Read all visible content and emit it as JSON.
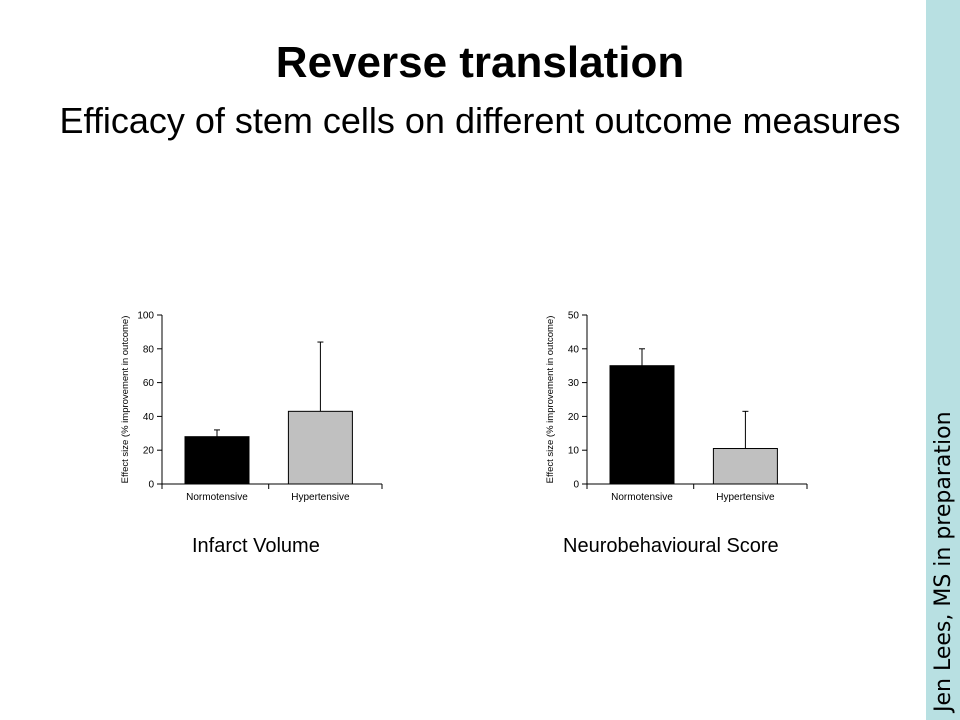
{
  "slide": {
    "title": "Reverse translation",
    "subtitle": "Efficacy of stem cells on different outcome measures",
    "credit": "Jen Lees, MS in preparation"
  },
  "colors": {
    "sidebar": "#b8e0e2",
    "bar_normotensive": "#000000",
    "bar_hypertensive": "#c0c0c0"
  },
  "chart_data": [
    {
      "type": "bar",
      "caption": "Infarct Volume",
      "ylabel": "Effect size (% improvement in outcome)",
      "xlabel": "",
      "categories": [
        "Normotensive",
        "Hypertensive"
      ],
      "values": [
        28,
        43
      ],
      "error_upper": [
        32,
        84
      ],
      "ylim": [
        0,
        100
      ],
      "yticks": [
        0,
        20,
        40,
        60,
        80,
        100
      ],
      "colors": [
        "#000000",
        "#c0c0c0"
      ]
    },
    {
      "type": "bar",
      "caption": "Neurobehavioural Score",
      "ylabel": "Effect size (% improvement in outcome)",
      "xlabel": "",
      "categories": [
        "Normotensive",
        "Hypertensive"
      ],
      "values": [
        35,
        10.5
      ],
      "error_upper": [
        40,
        21.5
      ],
      "ylim": [
        0,
        50
      ],
      "yticks": [
        0,
        10,
        20,
        30,
        40,
        50
      ],
      "colors": [
        "#000000",
        "#c0c0c0"
      ]
    }
  ]
}
